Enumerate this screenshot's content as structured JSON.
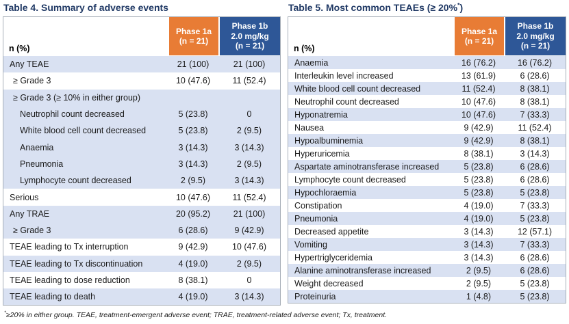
{
  "colors": {
    "header_orange": "#E87C35",
    "header_blue": "#2E5797",
    "row_shade_blue": "#D9E1F2",
    "title_navy": "#1F3864",
    "table_border_gray": "#A6ADB7"
  },
  "table4": {
    "title": "Table 4. Summary of adverse events",
    "corner_label": "n (%)",
    "col1_header": "Phase 1a\n(n = 21)",
    "col2_header": "Phase 1b\n2.0 mg/kg\n(n = 21)",
    "rows": [
      {
        "label": "Any TEAE",
        "v1": "21 (100)",
        "v2": "21 (100)",
        "indent": 0,
        "shade": true
      },
      {
        "label": "≥ Grade 3",
        "v1": "10 (47.6)",
        "v2": "11 (52.4)",
        "indent": 1,
        "shade": false
      },
      {
        "label": "≥ Grade 3 (≥ 10% in either group)",
        "v1": "",
        "v2": "",
        "indent": 1,
        "shade": true
      },
      {
        "label": "Neutrophil count decreased",
        "v1": "5 (23.8)",
        "v2": "0",
        "indent": 2,
        "shade": true
      },
      {
        "label": "White blood cell count decreased",
        "v1": "5 (23.8)",
        "v2": "2 (9.5)",
        "indent": 2,
        "shade": true
      },
      {
        "label": "Anaemia",
        "v1": "3 (14.3)",
        "v2": "3 (14.3)",
        "indent": 2,
        "shade": true
      },
      {
        "label": "Pneumonia",
        "v1": "3 (14.3)",
        "v2": "2 (9.5)",
        "indent": 2,
        "shade": true
      },
      {
        "label": "Lymphocyte count decreased",
        "v1": "2 (9.5)",
        "v2": "3 (14.3)",
        "indent": 2,
        "shade": true
      },
      {
        "label": "Serious",
        "v1": "10 (47.6)",
        "v2": "11 (52.4)",
        "indent": 0,
        "shade": false
      },
      {
        "label": "Any TRAE",
        "v1": "20 (95.2)",
        "v2": "21 (100)",
        "indent": 0,
        "shade": true
      },
      {
        "label": "≥ Grade 3",
        "v1": "6 (28.6)",
        "v2": "9 (42.9)",
        "indent": 1,
        "shade": true
      },
      {
        "label": "TEAE leading to Tx interruption",
        "v1": "9 (42.9)",
        "v2": "10 (47.6)",
        "indent": 0,
        "shade": false
      },
      {
        "label": "TEAE leading to Tx discontinuation",
        "v1": "4 (19.0)",
        "v2": "2 (9.5)",
        "indent": 0,
        "shade": true
      },
      {
        "label": "TEAE leading to dose reduction",
        "v1": "8 (38.1)",
        "v2": "0",
        "indent": 0,
        "shade": false
      },
      {
        "label": "TEAE leading to death",
        "v1": "4 (19.0)",
        "v2": "3 (14.3)",
        "indent": 0,
        "shade": true
      }
    ]
  },
  "table5": {
    "title_main": "Table 5. Most common TEAEs (≥ 20%",
    "title_sup": "*",
    "title_close": ")",
    "corner_label": "n (%)",
    "col1_header": "Phase 1a\n(n = 21)",
    "col2_header": "Phase 1b\n2.0 mg/kg\n(n = 21)",
    "rows": [
      {
        "label": "Anaemia",
        "v1": "16 (76.2)",
        "v2": "16 (76.2)",
        "indent": 0,
        "shade": true
      },
      {
        "label": "Interleukin level increased",
        "v1": "13 (61.9)",
        "v2": "6 (28.6)",
        "indent": 0,
        "shade": false
      },
      {
        "label": "White blood cell count decreased",
        "v1": "11 (52.4)",
        "v2": "8 (38.1)",
        "indent": 0,
        "shade": true
      },
      {
        "label": "Neutrophil count decreased",
        "v1": "10 (47.6)",
        "v2": "8 (38.1)",
        "indent": 0,
        "shade": false
      },
      {
        "label": "Hyponatremia",
        "v1": "10 (47.6)",
        "v2": "7 (33.3)",
        "indent": 0,
        "shade": true
      },
      {
        "label": "Nausea",
        "v1": "9 (42.9)",
        "v2": "11 (52.4)",
        "indent": 0,
        "shade": false
      },
      {
        "label": "Hypoalbuminemia",
        "v1": "9 (42.9)",
        "v2": "8 (38.1)",
        "indent": 0,
        "shade": true
      },
      {
        "label": "Hyperuricemia",
        "v1": "8 (38.1)",
        "v2": "3 (14.3)",
        "indent": 0,
        "shade": false
      },
      {
        "label": "Aspartate aminotransferase increased",
        "v1": "5 (23.8)",
        "v2": "6 (28.6)",
        "indent": 0,
        "shade": true
      },
      {
        "label": "Lymphocyte count decreased",
        "v1": "5 (23.8)",
        "v2": "6 (28.6)",
        "indent": 0,
        "shade": false
      },
      {
        "label": "Hypochloraemia",
        "v1": "5 (23.8)",
        "v2": "5 (23.8)",
        "indent": 0,
        "shade": true
      },
      {
        "label": "Constipation",
        "v1": "4 (19.0)",
        "v2": "7 (33.3)",
        "indent": 0,
        "shade": false
      },
      {
        "label": "Pneumonia",
        "v1": "4 (19.0)",
        "v2": "5 (23.8)",
        "indent": 0,
        "shade": true
      },
      {
        "label": "Decreased appetite",
        "v1": "3 (14.3)",
        "v2": "12 (57.1)",
        "indent": 0,
        "shade": false
      },
      {
        "label": "Vomiting",
        "v1": "3 (14.3)",
        "v2": "7 (33.3)",
        "indent": 0,
        "shade": true
      },
      {
        "label": "Hypertriglyceridemia",
        "v1": "3 (14.3)",
        "v2": "6 (28.6)",
        "indent": 0,
        "shade": false
      },
      {
        "label": "Alanine aminotransferase increased",
        "v1": "2 (9.5)",
        "v2": "6 (28.6)",
        "indent": 0,
        "shade": true
      },
      {
        "label": "Weight decreased",
        "v1": "2 (9.5)",
        "v2": "5 (23.8)",
        "indent": 0,
        "shade": false
      },
      {
        "label": "Proteinuria",
        "v1": "1 (4.8)",
        "v2": "5 (23.8)",
        "indent": 0,
        "shade": true
      }
    ]
  },
  "footnote": {
    "sup": "*",
    "text": "≥20% in either group. TEAE, treatment-emergent adverse event; TRAE, treatment-related adverse event; Tx, treatment."
  }
}
